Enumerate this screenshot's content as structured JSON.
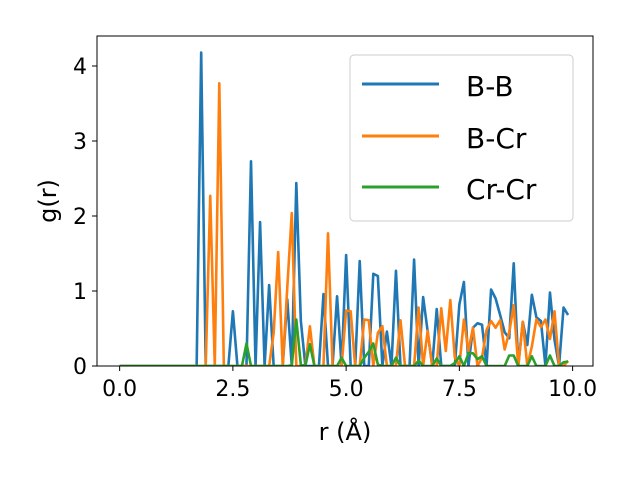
{
  "chart_data": {
    "type": "line",
    "title": "",
    "xlabel": "r (Å)",
    "ylabel": "g(r)",
    "xlim": [
      -0.5,
      10.45
    ],
    "ylim": [
      0,
      4.4
    ],
    "xticks": [
      0.0,
      2.5,
      5.0,
      7.5,
      10.0
    ],
    "xtick_labels": [
      "0.0",
      "2.5",
      "5.0",
      "7.5",
      "10.0"
    ],
    "yticks": [
      0,
      1,
      2,
      3,
      4
    ],
    "ytick_labels": [
      "0",
      "1",
      "2",
      "3",
      "4"
    ],
    "grid": false,
    "legend_position": "top-right",
    "series": [
      {
        "name": "B-B",
        "color": "#1f77b4",
        "points": [
          [
            0.0,
            0
          ],
          [
            1.6,
            0
          ],
          [
            1.7,
            0
          ],
          [
            1.8,
            4.18
          ],
          [
            1.9,
            0
          ],
          [
            2.0,
            0
          ],
          [
            2.1,
            0
          ],
          [
            2.2,
            0
          ],
          [
            2.3,
            0
          ],
          [
            2.4,
            0
          ],
          [
            2.5,
            0.73
          ],
          [
            2.6,
            0
          ],
          [
            2.7,
            0
          ],
          [
            2.8,
            0
          ],
          [
            2.9,
            2.73
          ],
          [
            3.0,
            0
          ],
          [
            3.1,
            1.92
          ],
          [
            3.2,
            0
          ],
          [
            3.3,
            1.08
          ],
          [
            3.4,
            0
          ],
          [
            3.5,
            0
          ],
          [
            3.6,
            0
          ],
          [
            3.7,
            0.89
          ],
          [
            3.8,
            0
          ],
          [
            3.9,
            2.44
          ],
          [
            4.0,
            0.6
          ],
          [
            4.1,
            0
          ],
          [
            4.2,
            0
          ],
          [
            4.3,
            0
          ],
          [
            4.4,
            0
          ],
          [
            4.5,
            0.96
          ],
          [
            4.6,
            0
          ],
          [
            4.7,
            0
          ],
          [
            4.8,
            0.93
          ],
          [
            4.9,
            0
          ],
          [
            5.0,
            1.48
          ],
          [
            5.1,
            0
          ],
          [
            5.2,
            0
          ],
          [
            5.3,
            1.4
          ],
          [
            5.4,
            0
          ],
          [
            5.5,
            0
          ],
          [
            5.6,
            1.23
          ],
          [
            5.7,
            1.2
          ],
          [
            5.8,
            0
          ],
          [
            5.9,
            0.46
          ],
          [
            6.0,
            0
          ],
          [
            6.1,
            1.27
          ],
          [
            6.2,
            0
          ],
          [
            6.3,
            0
          ],
          [
            6.4,
            0
          ],
          [
            6.5,
            1.42
          ],
          [
            6.6,
            0
          ],
          [
            6.7,
            0.92
          ],
          [
            6.8,
            0.46
          ],
          [
            6.9,
            0
          ],
          [
            7.0,
            0.76
          ],
          [
            7.1,
            0
          ],
          [
            7.2,
            0
          ],
          [
            7.3,
            0
          ],
          [
            7.4,
            0
          ],
          [
            7.5,
            0.82
          ],
          [
            7.6,
            1.12
          ],
          [
            7.7,
            0
          ],
          [
            7.8,
            0.51
          ],
          [
            7.9,
            0.57
          ],
          [
            8.0,
            0.55
          ],
          [
            8.1,
            0
          ],
          [
            8.2,
            1.02
          ],
          [
            8.3,
            0.9
          ],
          [
            8.4,
            0.68
          ],
          [
            8.5,
            0.45
          ],
          [
            8.6,
            0.37
          ],
          [
            8.7,
            1.37
          ],
          [
            8.8,
            0
          ],
          [
            8.9,
            0.59
          ],
          [
            9.0,
            0.28
          ],
          [
            9.1,
            0.95
          ],
          [
            9.2,
            0.65
          ],
          [
            9.3,
            0.6
          ],
          [
            9.4,
            0
          ],
          [
            9.5,
            0.98
          ],
          [
            9.6,
            0.35
          ],
          [
            9.7,
            0
          ],
          [
            9.8,
            0.78
          ],
          [
            9.9,
            0.68
          ]
        ]
      },
      {
        "name": "B-Cr",
        "color": "#ff7f0e",
        "points": [
          [
            0.0,
            0
          ],
          [
            1.8,
            0
          ],
          [
            1.9,
            0
          ],
          [
            2.0,
            2.27
          ],
          [
            2.1,
            0
          ],
          [
            2.2,
            3.77
          ],
          [
            2.3,
            0
          ],
          [
            2.4,
            0
          ],
          [
            2.5,
            0
          ],
          [
            2.6,
            0
          ],
          [
            2.7,
            0
          ],
          [
            2.8,
            0
          ],
          [
            2.9,
            0
          ],
          [
            3.0,
            0
          ],
          [
            3.1,
            0
          ],
          [
            3.2,
            0
          ],
          [
            3.3,
            0
          ],
          [
            3.4,
            0.44
          ],
          [
            3.5,
            1.52
          ],
          [
            3.6,
            0
          ],
          [
            3.7,
            1.04
          ],
          [
            3.8,
            2.04
          ],
          [
            3.9,
            0
          ],
          [
            4.0,
            0
          ],
          [
            4.1,
            0
          ],
          [
            4.2,
            0.53
          ],
          [
            4.3,
            0
          ],
          [
            4.4,
            0
          ],
          [
            4.5,
            0
          ],
          [
            4.6,
            1.77
          ],
          [
            4.7,
            0
          ],
          [
            4.8,
            0
          ],
          [
            4.9,
            0
          ],
          [
            5.0,
            0.74
          ],
          [
            5.1,
            0.73
          ],
          [
            5.2,
            0
          ],
          [
            5.3,
            0
          ],
          [
            5.4,
            0.62
          ],
          [
            5.5,
            0.61
          ],
          [
            5.6,
            0
          ],
          [
            5.7,
            0.44
          ],
          [
            5.8,
            0.53
          ],
          [
            5.9,
            0
          ],
          [
            6.0,
            0
          ],
          [
            6.1,
            0
          ],
          [
            6.2,
            0.61
          ],
          [
            6.3,
            0
          ],
          [
            6.4,
            0
          ],
          [
            6.5,
            0
          ],
          [
            6.6,
            0.78
          ],
          [
            6.7,
            0
          ],
          [
            6.8,
            0.47
          ],
          [
            6.9,
            0
          ],
          [
            7.0,
            0
          ],
          [
            7.1,
            0.77
          ],
          [
            7.2,
            0.2
          ],
          [
            7.3,
            0.88
          ],
          [
            7.4,
            0.11
          ],
          [
            7.5,
            0
          ],
          [
            7.6,
            0.62
          ],
          [
            7.7,
            0.2
          ],
          [
            7.8,
            0.51
          ],
          [
            7.9,
            0
          ],
          [
            8.0,
            0.11
          ],
          [
            8.1,
            0.48
          ],
          [
            8.2,
            0.6
          ],
          [
            8.3,
            0.51
          ],
          [
            8.4,
            0.61
          ],
          [
            8.5,
            0.22
          ],
          [
            8.6,
            0.45
          ],
          [
            8.7,
            0.81
          ],
          [
            8.8,
            0
          ],
          [
            8.9,
            0.59
          ],
          [
            9.0,
            0
          ],
          [
            9.1,
            0.26
          ],
          [
            9.2,
            0.62
          ],
          [
            9.3,
            0.52
          ],
          [
            9.4,
            0.62
          ],
          [
            9.5,
            0.36
          ],
          [
            9.6,
            0.73
          ],
          [
            9.7,
            0
          ],
          [
            9.8,
            0
          ],
          [
            9.9,
            0.07
          ]
        ]
      },
      {
        "name": "Cr-Cr",
        "color": "#2ca02c",
        "points": [
          [
            0.0,
            0
          ],
          [
            2.7,
            0
          ],
          [
            2.8,
            0.3
          ],
          [
            2.9,
            0
          ],
          [
            3.7,
            0
          ],
          [
            3.8,
            0.01
          ],
          [
            3.9,
            0.62
          ],
          [
            4.0,
            0.02
          ],
          [
            4.1,
            0
          ],
          [
            4.2,
            0.29
          ],
          [
            4.3,
            0
          ],
          [
            4.8,
            0
          ],
          [
            4.9,
            0.11
          ],
          [
            5.0,
            0
          ],
          [
            5.3,
            0
          ],
          [
            5.4,
            0.11
          ],
          [
            5.5,
            0.19
          ],
          [
            5.6,
            0.3
          ],
          [
            5.7,
            0.02
          ],
          [
            5.8,
            0
          ],
          [
            6.0,
            0
          ],
          [
            6.1,
            0.11
          ],
          [
            6.2,
            0
          ],
          [
            6.5,
            0
          ],
          [
            6.6,
            0.07
          ],
          [
            6.7,
            0
          ],
          [
            6.9,
            0
          ],
          [
            7.0,
            0.1
          ],
          [
            7.1,
            0
          ],
          [
            7.3,
            0
          ],
          [
            7.4,
            0.04
          ],
          [
            7.5,
            0.13
          ],
          [
            7.6,
            0
          ],
          [
            7.7,
            0.17
          ],
          [
            7.8,
            0.17
          ],
          [
            7.9,
            0.09
          ],
          [
            8.0,
            0.13
          ],
          [
            8.1,
            0
          ],
          [
            8.5,
            0
          ],
          [
            8.6,
            0.14
          ],
          [
            8.7,
            0.14
          ],
          [
            8.8,
            0
          ],
          [
            8.9,
            0
          ],
          [
            9.0,
            0
          ],
          [
            9.1,
            0.13
          ],
          [
            9.2,
            0
          ],
          [
            9.3,
            0
          ],
          [
            9.4,
            0
          ],
          [
            9.5,
            0.14
          ],
          [
            9.6,
            0
          ],
          [
            9.7,
            0
          ],
          [
            9.8,
            0.05
          ],
          [
            9.9,
            0.06
          ]
        ]
      }
    ]
  }
}
